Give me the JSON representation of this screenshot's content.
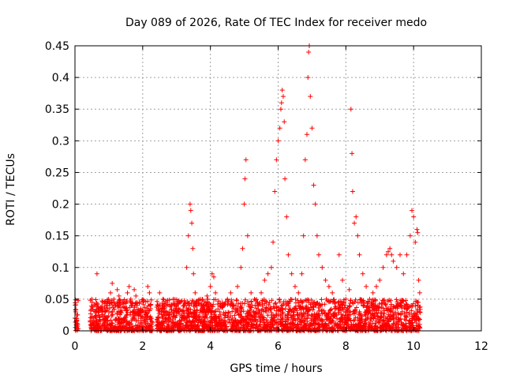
{
  "chart_data": {
    "type": "scatter",
    "title": "Day 089 of 2026, Rate Of TEC Index for receiver medo",
    "xlabel": "GPS time / hours",
    "ylabel": "ROTI / TECUs",
    "xlim": [
      0,
      12
    ],
    "ylim": [
      0,
      0.45
    ],
    "x_ticks": [
      0,
      2,
      4,
      6,
      8,
      10,
      12
    ],
    "x_tick_labels": [
      "0",
      "2",
      "4",
      "6",
      "8",
      "10",
      "12"
    ],
    "y_ticks": [
      0,
      0.05,
      0.1,
      0.15,
      0.2,
      0.25,
      0.3,
      0.35,
      0.4,
      0.45
    ],
    "y_tick_labels": [
      "0",
      "0.05",
      "0.1",
      "0.15",
      "0.2",
      "0.25",
      "0.3",
      "0.35",
      "0.4",
      "0.45"
    ],
    "grid": true,
    "marker": "plus",
    "marker_color": "#ff0000",
    "series": [
      {
        "name": "ROTI",
        "points": [
          [
            0.0,
            0.02
          ],
          [
            0.02,
            0.03
          ],
          [
            0.04,
            0.015
          ],
          [
            0.06,
            0.025
          ],
          [
            0.08,
            0.01
          ],
          [
            0.5,
            0.05
          ],
          [
            0.55,
            0.02
          ],
          [
            0.6,
            0.03
          ],
          [
            0.65,
            0.09
          ],
          [
            0.7,
            0.025
          ],
          [
            0.75,
            0.015
          ],
          [
            0.8,
            0.035
          ],
          [
            0.9,
            0.02
          ],
          [
            0.95,
            0.04
          ],
          [
            1.0,
            0.03
          ],
          [
            1.05,
            0.06
          ],
          [
            1.1,
            0.075
          ],
          [
            1.15,
            0.05
          ],
          [
            1.2,
            0.04
          ],
          [
            1.25,
            0.065
          ],
          [
            1.3,
            0.055
          ],
          [
            1.35,
            0.03
          ],
          [
            1.4,
            0.045
          ],
          [
            1.45,
            0.02
          ],
          [
            1.5,
            0.035
          ],
          [
            1.55,
            0.06
          ],
          [
            1.6,
            0.07
          ],
          [
            1.65,
            0.05
          ],
          [
            1.7,
            0.04
          ],
          [
            1.75,
            0.065
          ],
          [
            1.8,
            0.055
          ],
          [
            1.85,
            0.03
          ],
          [
            1.9,
            0.045
          ],
          [
            1.95,
            0.02
          ],
          [
            2.05,
            0.015
          ],
          [
            2.1,
            0.025
          ],
          [
            2.15,
            0.07
          ],
          [
            2.2,
            0.06
          ],
          [
            2.25,
            0.02
          ],
          [
            2.5,
            0.06
          ],
          [
            2.55,
            0.03
          ],
          [
            2.6,
            0.05
          ],
          [
            2.7,
            0.04
          ],
          [
            2.8,
            0.025
          ],
          [
            2.9,
            0.05
          ],
          [
            3.0,
            0.035
          ],
          [
            3.1,
            0.045
          ],
          [
            3.2,
            0.03
          ],
          [
            3.3,
            0.1
          ],
          [
            3.35,
            0.15
          ],
          [
            3.4,
            0.2
          ],
          [
            3.42,
            0.19
          ],
          [
            3.45,
            0.17
          ],
          [
            3.48,
            0.13
          ],
          [
            3.5,
            0.09
          ],
          [
            3.55,
            0.06
          ],
          [
            3.6,
            0.04
          ],
          [
            3.7,
            0.05
          ],
          [
            3.8,
            0.03
          ],
          [
            3.9,
            0.055
          ],
          [
            4.0,
            0.07
          ],
          [
            4.05,
            0.09
          ],
          [
            4.1,
            0.085
          ],
          [
            4.15,
            0.06
          ],
          [
            4.3,
            0.04
          ],
          [
            4.5,
            0.05
          ],
          [
            4.6,
            0.06
          ],
          [
            4.7,
            0.04
          ],
          [
            4.8,
            0.07
          ],
          [
            4.9,
            0.1
          ],
          [
            4.95,
            0.13
          ],
          [
            5.0,
            0.2
          ],
          [
            5.02,
            0.24
          ],
          [
            5.05,
            0.27
          ],
          [
            5.1,
            0.15
          ],
          [
            5.2,
            0.06
          ],
          [
            5.3,
            0.05
          ],
          [
            5.4,
            0.04
          ],
          [
            5.5,
            0.06
          ],
          [
            5.6,
            0.08
          ],
          [
            5.7,
            0.09
          ],
          [
            5.8,
            0.1
          ],
          [
            5.85,
            0.14
          ],
          [
            5.9,
            0.22
          ],
          [
            5.95,
            0.27
          ],
          [
            6.0,
            0.3
          ],
          [
            6.05,
            0.32
          ],
          [
            6.08,
            0.35
          ],
          [
            6.1,
            0.36
          ],
          [
            6.12,
            0.38
          ],
          [
            6.15,
            0.37
          ],
          [
            6.18,
            0.33
          ],
          [
            6.2,
            0.24
          ],
          [
            6.25,
            0.18
          ],
          [
            6.3,
            0.12
          ],
          [
            6.4,
            0.09
          ],
          [
            6.5,
            0.07
          ],
          [
            6.6,
            0.06
          ],
          [
            6.7,
            0.09
          ],
          [
            6.75,
            0.15
          ],
          [
            6.8,
            0.27
          ],
          [
            6.85,
            0.31
          ],
          [
            6.88,
            0.4
          ],
          [
            6.9,
            0.44
          ],
          [
            6.92,
            0.45
          ],
          [
            6.95,
            0.37
          ],
          [
            7.0,
            0.32
          ],
          [
            7.05,
            0.23
          ],
          [
            7.1,
            0.2
          ],
          [
            7.15,
            0.15
          ],
          [
            7.2,
            0.12
          ],
          [
            7.3,
            0.1
          ],
          [
            7.4,
            0.08
          ],
          [
            7.5,
            0.07
          ],
          [
            7.6,
            0.06
          ],
          [
            7.8,
            0.12
          ],
          [
            7.9,
            0.08
          ],
          [
            8.0,
            0.05
          ],
          [
            8.1,
            0.065
          ],
          [
            8.15,
            0.35
          ],
          [
            8.18,
            0.28
          ],
          [
            8.2,
            0.22
          ],
          [
            8.25,
            0.17
          ],
          [
            8.3,
            0.18
          ],
          [
            8.35,
            0.15
          ],
          [
            8.4,
            0.12
          ],
          [
            8.5,
            0.09
          ],
          [
            8.6,
            0.07
          ],
          [
            8.7,
            0.05
          ],
          [
            8.8,
            0.06
          ],
          [
            8.9,
            0.07
          ],
          [
            9.0,
            0.08
          ],
          [
            9.1,
            0.1
          ],
          [
            9.2,
            0.12
          ],
          [
            9.25,
            0.125
          ],
          [
            9.3,
            0.13
          ],
          [
            9.35,
            0.12
          ],
          [
            9.4,
            0.11
          ],
          [
            9.5,
            0.1
          ],
          [
            9.6,
            0.12
          ],
          [
            9.7,
            0.09
          ],
          [
            9.8,
            0.12
          ],
          [
            9.9,
            0.15
          ],
          [
            9.95,
            0.19
          ],
          [
            10.0,
            0.18
          ],
          [
            10.05,
            0.14
          ],
          [
            10.1,
            0.16
          ],
          [
            10.12,
            0.155
          ],
          [
            10.15,
            0.08
          ],
          [
            10.18,
            0.06
          ]
        ]
      }
    ],
    "dense_band": {
      "note": "dense cluster of observations along the floor",
      "x_ranges": [
        [
          0.0,
          0.1
        ],
        [
          0.45,
          2.3
        ],
        [
          2.4,
          10.2
        ]
      ],
      "y_range": [
        0.0,
        0.05
      ]
    }
  }
}
